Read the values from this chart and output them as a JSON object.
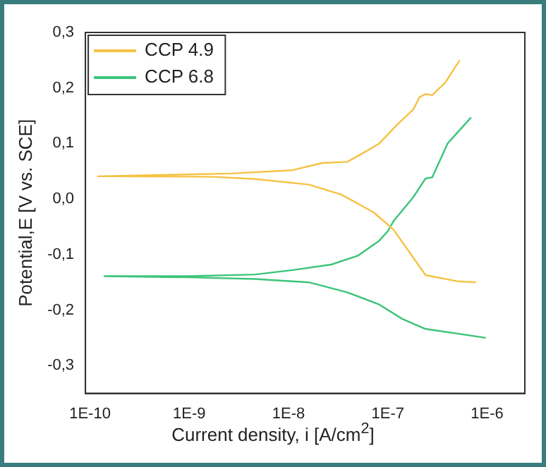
{
  "chart_data": {
    "type": "line",
    "xlabel": "Current density, i [A/cm$^{2}$]",
    "ylabel": "Potential,E [V vs. SCE]",
    "log": "x",
    "legend": "top left",
    "grid": false,
    "marker": "none",
    "line_style": "solid",
    "xlim": [
      9e-11,
      2.4e-06
    ],
    "xticks": [
      {
        "value": 1e-10,
        "label": "1E-10"
      },
      {
        "value": 1e-09,
        "label": "1E-9"
      },
      {
        "value": 1e-08,
        "label": "1E-8"
      },
      {
        "value": 1e-07,
        "label": "1E-7"
      },
      {
        "value": 1e-06,
        "label": "1E-6"
      }
    ],
    "ylim": [
      -0.35,
      0.3
    ],
    "yticks": [
      {
        "value": -0.3,
        "label": "-0,3"
      },
      {
        "value": -0.2,
        "label": "-0,2"
      },
      {
        "value": -0.1,
        "label": "-0,1"
      },
      {
        "value": 0,
        "label": "0,0"
      },
      {
        "value": 0.1,
        "label": "0,1"
      },
      {
        "value": 0.2,
        "label": "0,2"
      },
      {
        "value": 0.3,
        "label": "0,3"
      }
    ],
    "series": [
      {
        "name": "CCP 4.9",
        "color": "#f5c242",
        "x": [
          7.7e-07,
          5e-07,
          2.4e-07,
          1.14e-07,
          7.2e-08,
          3.4e-08,
          1.6e-08,
          4.6e-09,
          1.7e-09,
          1.2e-10,
          2.7e-09,
          1.1e-08,
          2.2e-08,
          3.9e-08,
          5.3e-08,
          8.2e-08,
          1.26e-07,
          1.8e-07,
          2.1e-07,
          2.4e-07,
          2.8e-07,
          3.8e-07,
          5.3e-07
        ],
        "values": [
          -0.15,
          -0.148,
          -0.137,
          -0.055,
          -0.024,
          0.008,
          0.026,
          0.036,
          0.04,
          0.041,
          0.046,
          0.052,
          0.065,
          0.067,
          0.08,
          0.1,
          0.135,
          0.161,
          0.184,
          0.189,
          0.187,
          0.21,
          0.25
        ]
      },
      {
        "name": "CCP 6.8",
        "color": "#3cc47a",
        "x": [
          9.7e-07,
          2.4e-07,
          1.4e-07,
          8.2e-08,
          3.9e-08,
          1.6e-08,
          4.6e-09,
          1e-09,
          1.4e-10,
          1e-09,
          4.6e-09,
          1.1e-08,
          2.7e-08,
          5e-08,
          8.2e-08,
          1e-07,
          1.14e-07,
          1.8e-07,
          2.4e-07,
          2.8e-07,
          4e-07,
          6.9e-07
        ],
        "values": [
          -0.25,
          -0.234,
          -0.216,
          -0.19,
          -0.168,
          -0.15,
          -0.144,
          -0.141,
          -0.139,
          -0.139,
          -0.136,
          -0.128,
          -0.118,
          -0.102,
          -0.075,
          -0.058,
          -0.04,
          0.003,
          0.037,
          0.039,
          0.1,
          0.147
        ]
      }
    ]
  }
}
